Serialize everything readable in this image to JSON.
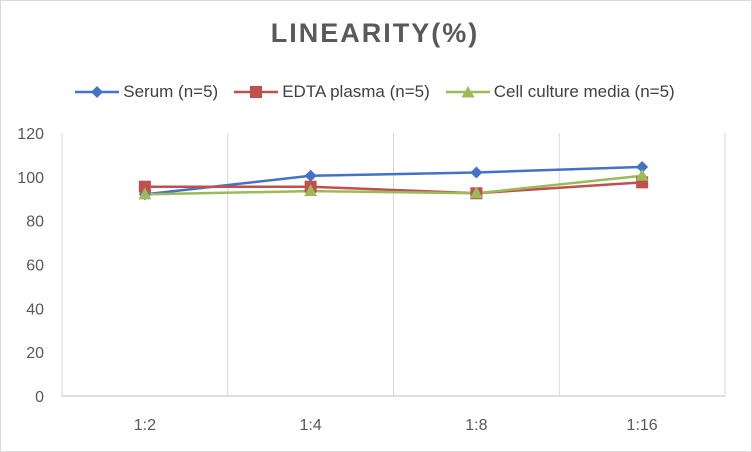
{
  "chart_data": {
    "type": "line",
    "title": "LINEARITY(%)",
    "xlabel": "",
    "ylabel": "",
    "categories": [
      "1:2",
      "1:4",
      "1:8",
      "1:16"
    ],
    "ylim": [
      0,
      120
    ],
    "yticks": [
      0,
      20,
      40,
      60,
      80,
      100,
      120
    ],
    "grid": "vertical",
    "legend_position": "top",
    "series": [
      {
        "name": "Serum (n=5)",
        "color": "#4472c4",
        "marker": "diamond",
        "values": [
          92,
          100.5,
          102,
          104.5
        ]
      },
      {
        "name": "EDTA plasma (n=5)",
        "color": "#c0504d",
        "marker": "square",
        "values": [
          95.5,
          95.5,
          92.5,
          97.5
        ]
      },
      {
        "name": "Cell culture media (n=5)",
        "color": "#9bbb59",
        "marker": "triangle",
        "values": [
          92,
          93.5,
          92.5,
          100.5
        ]
      }
    ]
  }
}
